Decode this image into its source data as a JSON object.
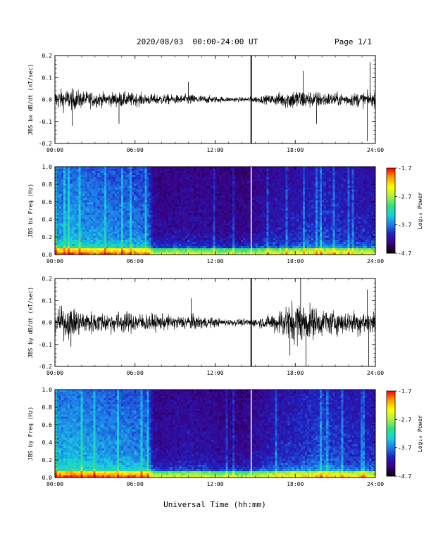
{
  "header": {
    "date_range": "2020/08/03  00:00-24:00 UT",
    "page": "Page 1/1"
  },
  "colors": {
    "trace": "#000000",
    "colormap": [
      "#000000",
      "#3a0080",
      "#2020c0",
      "#1e7be8",
      "#17d0e0",
      "#30e080",
      "#b0f040",
      "#ffff00",
      "#ffa000",
      "#ff0000"
    ]
  },
  "chart_data": [
    {
      "type": "line",
      "id": "bx-dbdt",
      "ylabel": "JBS bx dB/dt (nT/sec)",
      "xlim": [
        0,
        24
      ],
      "ylim": [
        -0.2,
        0.2
      ],
      "ytick_labels": [
        "0.2",
        "0.1",
        "0.0",
        "-0.1",
        "-0.2"
      ],
      "xtick_labels": [
        "00:00",
        "06:00",
        "12:00",
        "18:00",
        "24:00"
      ],
      "data_gap_hour": 14.7,
      "envelope": {
        "hours": [
          0,
          1,
          2,
          3,
          4,
          5,
          6,
          7,
          8,
          9,
          10,
          11,
          12,
          13,
          14,
          15,
          16,
          17,
          18,
          19,
          20,
          21,
          22,
          23,
          24
        ],
        "amplitude": [
          0.045,
          0.05,
          0.04,
          0.035,
          0.03,
          0.035,
          0.03,
          0.025,
          0.025,
          0.02,
          0.025,
          0.02,
          0.015,
          0.012,
          0.01,
          0.015,
          0.02,
          0.035,
          0.05,
          0.04,
          0.035,
          0.03,
          0.03,
          0.035,
          0.03
        ]
      },
      "spikes": [
        [
          1.3,
          -0.12
        ],
        [
          4.8,
          -0.11
        ],
        [
          10.0,
          0.08
        ],
        [
          18.6,
          0.13
        ],
        [
          19.6,
          -0.11
        ],
        [
          23.4,
          -0.19
        ],
        [
          23.6,
          0.17
        ]
      ]
    },
    {
      "type": "heatmap",
      "id": "bx-spectrogram",
      "ylabel": "JBS bx Freq (Hz)",
      "xlim": [
        0,
        24
      ],
      "ylim": [
        0,
        1.0
      ],
      "ytick_labels": [
        "1.0",
        "0.8",
        "0.6",
        "0.4",
        "0.2",
        "0.0"
      ],
      "xtick_labels": [
        "00:00",
        "06:00",
        "12:00",
        "18:00",
        "24:00"
      ],
      "data_gap_hour": 14.7,
      "colorbar": {
        "label": "Log₁₀ Power",
        "range": [
          -4.7,
          -1.7
        ],
        "tick_labels": [
          "-1.7",
          "-2.7",
          "-3.7",
          "-4.7"
        ]
      },
      "activity_profile": {
        "hours": [
          0,
          1,
          2,
          3,
          4,
          5,
          6,
          7,
          7.4,
          8,
          9,
          10,
          11,
          12,
          13,
          14,
          15,
          16,
          17,
          18,
          19,
          20,
          21,
          22,
          23,
          24
        ],
        "level": [
          0.7,
          0.75,
          0.72,
          0.7,
          0.68,
          0.66,
          0.64,
          0.6,
          0.3,
          0.28,
          0.3,
          0.32,
          0.3,
          0.28,
          0.27,
          0.25,
          0.3,
          0.35,
          0.38,
          0.4,
          0.45,
          0.5,
          0.45,
          0.42,
          0.4,
          0.4
        ]
      }
    },
    {
      "type": "line",
      "id": "by-dbdt",
      "ylabel": "JBS by dB/dt (nT/sec)",
      "xlim": [
        0,
        24
      ],
      "ylim": [
        -0.2,
        0.2
      ],
      "ytick_labels": [
        "0.2",
        "0.1",
        "0.0",
        "-0.1",
        "-0.2"
      ],
      "xtick_labels": [
        "00:00",
        "06:00",
        "12:00",
        "18:00",
        "24:00"
      ],
      "data_gap_hour": 14.7,
      "envelope": {
        "hours": [
          0,
          1,
          2,
          3,
          4,
          5,
          6,
          7,
          8,
          9,
          10,
          11,
          12,
          13,
          14,
          15,
          16,
          17,
          18,
          19,
          20,
          21,
          22,
          23,
          24
        ],
        "amplitude": [
          0.06,
          0.07,
          0.055,
          0.05,
          0.045,
          0.05,
          0.045,
          0.04,
          0.035,
          0.03,
          0.035,
          0.03,
          0.02,
          0.015,
          0.015,
          0.02,
          0.03,
          0.07,
          0.1,
          0.08,
          0.06,
          0.055,
          0.05,
          0.06,
          0.055
        ]
      },
      "spikes": [
        [
          1.2,
          -0.11
        ],
        [
          10.2,
          0.11
        ],
        [
          18.4,
          0.2
        ],
        [
          18.8,
          -0.2
        ],
        [
          17.6,
          -0.15
        ],
        [
          23.5,
          -0.2
        ],
        [
          23.4,
          0.15
        ]
      ]
    },
    {
      "type": "heatmap",
      "id": "by-spectrogram",
      "ylabel": "JBS by Freq (Hz)",
      "xlim": [
        0,
        24
      ],
      "ylim": [
        0,
        1.0
      ],
      "ytick_labels": [
        "1.0",
        "0.8",
        "0.6",
        "0.4",
        "0.2",
        "0.0"
      ],
      "xtick_labels": [
        "00:00",
        "06:00",
        "12:00",
        "18:00",
        "24:00"
      ],
      "data_gap_hour": 14.7,
      "colorbar": {
        "label": "Log₁₀ Power",
        "range": [
          -4.7,
          -1.7
        ],
        "tick_labels": [
          "-1.7",
          "-2.7",
          "-3.7",
          "-4.7"
        ]
      },
      "activity_profile": {
        "hours": [
          0,
          1,
          2,
          3,
          4,
          5,
          6,
          7,
          7.4,
          8,
          9,
          10,
          11,
          12,
          13,
          14,
          15,
          16,
          17,
          18,
          19,
          20,
          21,
          22,
          23,
          24
        ],
        "level": [
          0.75,
          0.8,
          0.76,
          0.74,
          0.72,
          0.7,
          0.68,
          0.64,
          0.32,
          0.3,
          0.33,
          0.35,
          0.33,
          0.3,
          0.28,
          0.27,
          0.32,
          0.38,
          0.42,
          0.46,
          0.5,
          0.55,
          0.5,
          0.46,
          0.44,
          0.44
        ]
      }
    }
  ],
  "xlabel": "Universal Time (hh:mm)"
}
